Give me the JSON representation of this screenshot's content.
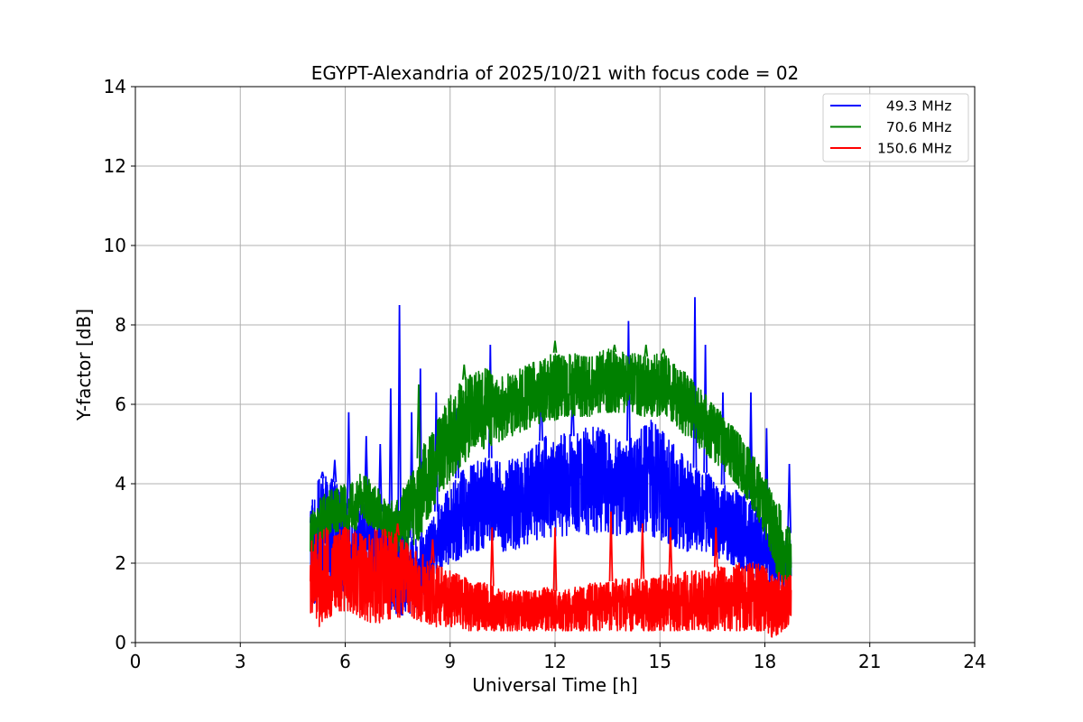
{
  "chart_data": {
    "type": "line",
    "title": "EGYPT-Alexandria of 2025/10/21 with focus code = 02",
    "xlabel": "Universal Time [h]",
    "ylabel": "Y-factor [dB]",
    "xlim": [
      0,
      24
    ],
    "ylim": [
      0,
      14
    ],
    "x_ticks": [
      0,
      3,
      6,
      9,
      12,
      15,
      18,
      21,
      24
    ],
    "y_ticks": [
      0,
      2,
      4,
      6,
      8,
      10,
      12,
      14
    ],
    "grid": true,
    "legend_position": "top-right",
    "data_range_hours": [
      5.0,
      18.75
    ],
    "series": [
      {
        "name": "49.3 MHz",
        "legend_label": "  49.3 MHz",
        "color": "#0000ff",
        "x": [
          5.0,
          5.25,
          5.5,
          5.75,
          6.0,
          6.25,
          6.5,
          6.75,
          7.0,
          7.25,
          7.5,
          7.75,
          8.0,
          8.25,
          8.5,
          8.75,
          9.0,
          9.25,
          9.5,
          9.75,
          10.0,
          10.25,
          10.5,
          10.75,
          11.0,
          11.25,
          11.5,
          11.75,
          12.0,
          12.25,
          12.5,
          12.75,
          13.0,
          13.25,
          13.5,
          13.75,
          14.0,
          14.25,
          14.5,
          14.75,
          15.0,
          15.25,
          15.5,
          15.75,
          16.0,
          16.25,
          16.5,
          16.75,
          17.0,
          17.25,
          17.5,
          17.75,
          18.0,
          18.25,
          18.5,
          18.75
        ],
        "upper": [
          3.9,
          4.1,
          4.2,
          4.0,
          3.5,
          3.2,
          3.6,
          3.8,
          3.3,
          3.1,
          3.0,
          2.7,
          2.6,
          2.7,
          3.1,
          3.6,
          3.9,
          4.2,
          4.5,
          4.6,
          4.7,
          4.6,
          4.5,
          4.6,
          4.7,
          4.8,
          5.0,
          5.2,
          5.0,
          5.3,
          5.2,
          5.3,
          5.5,
          5.4,
          5.3,
          5.1,
          5.0,
          5.2,
          5.4,
          5.6,
          5.4,
          5.1,
          4.9,
          4.6,
          4.4,
          4.3,
          4.2,
          4.0,
          3.9,
          3.8,
          3.7,
          3.5,
          3.2,
          2.5,
          2.6,
          2.8
        ],
        "lower": [
          0.8,
          1.2,
          1.4,
          1.3,
          1.3,
          1.5,
          1.6,
          1.5,
          1.1,
          0.9,
          0.7,
          0.7,
          0.8,
          1.2,
          1.6,
          1.9,
          2.0,
          2.1,
          2.2,
          2.3,
          2.4,
          2.4,
          2.3,
          2.3,
          2.4,
          2.5,
          2.6,
          2.6,
          2.6,
          2.7,
          2.7,
          2.8,
          2.7,
          2.8,
          2.8,
          2.7,
          2.7,
          2.8,
          2.8,
          2.7,
          2.6,
          2.5,
          2.4,
          2.3,
          2.3,
          2.3,
          2.2,
          2.1,
          2.0,
          1.9,
          1.8,
          1.6,
          1.5,
          1.4,
          1.3,
          1.6
        ],
        "peaks": [
          [
            5.35,
            4.3
          ],
          [
            5.7,
            4.6
          ],
          [
            6.1,
            5.8
          ],
          [
            6.6,
            5.2
          ],
          [
            7.0,
            5.0
          ],
          [
            7.3,
            6.4
          ],
          [
            7.55,
            8.5
          ],
          [
            7.9,
            5.8
          ],
          [
            8.15,
            6.9
          ],
          [
            8.6,
            6.3
          ],
          [
            9.2,
            5.9
          ],
          [
            10.15,
            7.5
          ],
          [
            11.6,
            7.0
          ],
          [
            12.5,
            6.4
          ],
          [
            14.1,
            8.1
          ],
          [
            16.0,
            8.7
          ],
          [
            16.3,
            7.5
          ],
          [
            16.8,
            6.3
          ],
          [
            17.6,
            6.3
          ],
          [
            18.05,
            5.4
          ],
          [
            18.7,
            4.5
          ]
        ]
      },
      {
        "name": "70.6 MHz",
        "legend_label": "  70.6 MHz",
        "color": "#008000",
        "x": [
          5.0,
          5.25,
          5.5,
          5.75,
          6.0,
          6.25,
          6.5,
          6.75,
          7.0,
          7.25,
          7.5,
          7.75,
          8.0,
          8.25,
          8.5,
          8.75,
          9.0,
          9.25,
          9.5,
          9.75,
          10.0,
          10.25,
          10.5,
          10.75,
          11.0,
          11.25,
          11.5,
          11.75,
          12.0,
          12.25,
          12.5,
          12.75,
          13.0,
          13.25,
          13.5,
          13.75,
          14.0,
          14.25,
          14.5,
          14.75,
          15.0,
          15.25,
          15.5,
          15.75,
          16.0,
          16.25,
          16.5,
          16.75,
          17.0,
          17.25,
          17.5,
          17.75,
          18.0,
          18.25,
          18.5,
          18.75
        ],
        "upper": [
          3.2,
          3.6,
          3.8,
          3.9,
          4.0,
          4.1,
          4.3,
          4.1,
          3.8,
          3.5,
          3.7,
          4.0,
          4.4,
          5.0,
          5.5,
          5.8,
          6.2,
          6.5,
          6.7,
          6.8,
          6.9,
          6.8,
          6.7,
          6.8,
          6.9,
          7.0,
          7.1,
          7.2,
          7.3,
          7.2,
          7.3,
          7.2,
          7.2,
          7.3,
          7.4,
          7.3,
          7.4,
          7.3,
          7.2,
          7.2,
          7.3,
          7.2,
          7.0,
          6.8,
          6.5,
          6.3,
          6.0,
          5.8,
          5.5,
          5.3,
          5.0,
          4.6,
          4.2,
          3.8,
          3.3,
          2.8
        ],
        "lower": [
          2.2,
          2.5,
          2.7,
          2.8,
          2.8,
          2.8,
          3.0,
          2.9,
          2.7,
          2.5,
          2.3,
          2.2,
          2.4,
          2.9,
          3.4,
          3.8,
          4.1,
          4.4,
          4.6,
          4.8,
          4.9,
          5.0,
          5.1,
          5.2,
          5.3,
          5.4,
          5.5,
          5.6,
          5.6,
          5.7,
          5.7,
          5.7,
          5.7,
          5.8,
          5.8,
          5.8,
          5.8,
          5.8,
          5.7,
          5.7,
          5.7,
          5.6,
          5.4,
          5.2,
          5.0,
          4.8,
          4.6,
          4.4,
          4.2,
          3.9,
          3.6,
          3.2,
          2.7,
          2.0,
          1.2,
          1.4
        ],
        "peaks": [
          [
            8.1,
            6.5
          ],
          [
            9.4,
            7.0
          ],
          [
            12.0,
            7.6
          ],
          [
            13.7,
            7.5
          ],
          [
            14.6,
            7.5
          ],
          [
            15.1,
            7.4
          ]
        ]
      },
      {
        "name": "150.6 MHz",
        "legend_label": "150.6 MHz",
        "color": "#ff0000",
        "x": [
          5.0,
          5.25,
          5.5,
          5.75,
          6.0,
          6.25,
          6.5,
          6.75,
          7.0,
          7.25,
          7.5,
          7.75,
          8.0,
          8.25,
          8.5,
          8.75,
          9.0,
          9.25,
          9.5,
          9.75,
          10.0,
          10.25,
          10.5,
          10.75,
          11.0,
          11.25,
          11.5,
          11.75,
          12.0,
          12.25,
          12.5,
          12.75,
          13.0,
          13.25,
          13.5,
          13.75,
          14.0,
          14.25,
          14.5,
          14.75,
          15.0,
          15.25,
          15.5,
          15.75,
          16.0,
          16.25,
          16.5,
          16.75,
          17.0,
          17.25,
          17.5,
          17.75,
          18.0,
          18.25,
          18.5,
          18.75
        ],
        "upper": [
          2.6,
          2.8,
          2.9,
          2.8,
          2.9,
          2.8,
          2.7,
          2.8,
          2.9,
          2.8,
          2.7,
          2.5,
          2.3,
          2.2,
          2.0,
          1.9,
          1.8,
          1.7,
          1.6,
          1.5,
          1.5,
          1.4,
          1.3,
          1.3,
          1.3,
          1.3,
          1.3,
          1.4,
          1.3,
          1.3,
          1.4,
          1.4,
          1.5,
          1.5,
          1.5,
          1.6,
          1.6,
          1.6,
          1.6,
          1.6,
          1.7,
          1.7,
          1.7,
          1.8,
          1.8,
          1.8,
          1.9,
          1.9,
          1.9,
          2.0,
          2.0,
          2.0,
          1.9,
          1.7,
          1.8,
          1.8
        ],
        "lower": [
          0.6,
          0.4,
          0.6,
          0.8,
          0.8,
          0.7,
          0.6,
          0.5,
          0.5,
          0.6,
          0.6,
          0.7,
          0.6,
          0.5,
          0.4,
          0.4,
          0.4,
          0.4,
          0.3,
          0.3,
          0.3,
          0.3,
          0.3,
          0.3,
          0.3,
          0.3,
          0.3,
          0.3,
          0.3,
          0.3,
          0.3,
          0.3,
          0.3,
          0.3,
          0.3,
          0.3,
          0.3,
          0.3,
          0.3,
          0.3,
          0.3,
          0.3,
          0.3,
          0.3,
          0.3,
          0.3,
          0.3,
          0.3,
          0.3,
          0.3,
          0.3,
          0.3,
          0.3,
          0.1,
          0.3,
          0.5
        ],
        "peaks": [
          [
            7.5,
            3.0
          ],
          [
            8.5,
            2.6
          ],
          [
            10.2,
            2.9
          ],
          [
            12.0,
            2.9
          ],
          [
            13.6,
            3.3
          ],
          [
            14.5,
            3.0
          ],
          [
            15.3,
            2.9
          ],
          [
            16.6,
            2.9
          ]
        ]
      }
    ]
  }
}
